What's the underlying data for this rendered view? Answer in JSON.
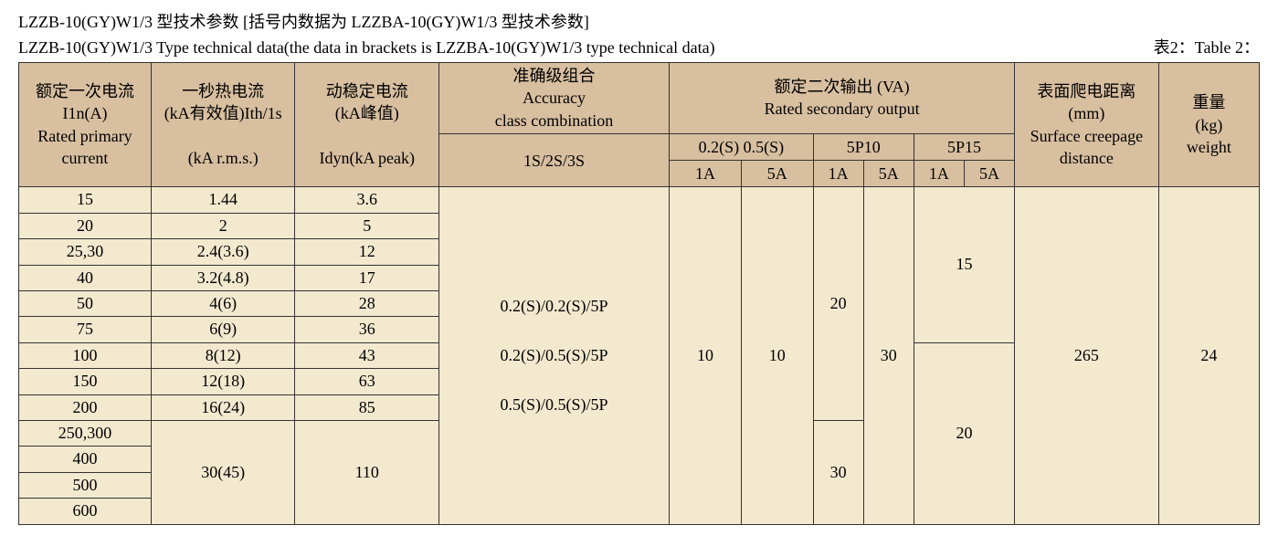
{
  "title_cn": "LZZB-10(GY)W1/3 型技术参数 [括号内数据为 LZZBA-10(GY)W1/3 型技术参数]",
  "title_en": "LZZB-10(GY)W1/3 Type technical data(the data in brackets is LZZBA-10(GY)W1/3 type technical data)",
  "table_label": "表2：Table 2：",
  "headers": {
    "primary_current_cn": "额定一次电流",
    "primary_current_sym": "I1n(A)",
    "primary_current_en": "Rated primary current",
    "thermal_cn": "一秒热电流",
    "thermal_sym": "(kA有效值)Ith/1s",
    "thermal_unit": "(kA r.m.s.)",
    "dyn_cn": "动稳定电流",
    "dyn_sym": "(kA峰值)",
    "dyn_unit": "Idyn(kA peak)",
    "accuracy_cn": "准确级组合",
    "accuracy_en1": "Accuracy",
    "accuracy_en2": "class combination",
    "accuracy_sub": "1S/2S/3S",
    "output_cn": "额定二次输出 (VA)",
    "output_en": "Rated secondary output",
    "out_02_05": "0.2(S)  0.5(S)",
    "out_5p10": "5P10",
    "out_5p15": "5P15",
    "out_1a": "1A",
    "out_5a": "5A",
    "creepage_cn": "表面爬电距离",
    "creepage_mm": "(mm)",
    "creepage_en1": "Surface creepage",
    "creepage_en2": "distance",
    "weight_cn": "重量",
    "weight_kg": "(kg)",
    "weight_en": "weight"
  },
  "rows": {
    "r1_primary": "15",
    "r1_thermal": "1.44",
    "r1_dyn": "3.6",
    "r2_primary": "20",
    "r2_thermal": "2",
    "r2_dyn": "5",
    "r3_primary": "25,30",
    "r3_thermal": "2.4(3.6)",
    "r3_dyn": "12",
    "r4_primary": "40",
    "r4_thermal": "3.2(4.8)",
    "r4_dyn": "17",
    "r5_primary": "50",
    "r5_thermal": "4(6)",
    "r5_dyn": "28",
    "r6_primary": "75",
    "r6_thermal": "6(9)",
    "r6_dyn": "36",
    "r7_primary": "100",
    "r7_thermal": "8(12)",
    "r7_dyn": "43",
    "r8_primary": "150",
    "r8_thermal": "12(18)",
    "r8_dyn": "63",
    "r9_primary": "200",
    "r9_thermal": "16(24)",
    "r9_dyn": "85",
    "r10_primary": "250,300",
    "r11_primary": "400",
    "r12_primary": "500",
    "r13_primary": "600",
    "thermal_last": "30(45)",
    "dyn_last": "110"
  },
  "merged": {
    "accuracy_l1": "0.2(S)/0.2(S)/5P",
    "accuracy_l2": "0.2(S)/0.5(S)/5P",
    "accuracy_l3": "0.5(S)/0.5(S)/5P",
    "out_1a_val": "10",
    "out_5a_val": "10",
    "p10_1a_top": "20",
    "p10_1a_bot": "30",
    "p10_5a": "30",
    "p15_top": "15",
    "p15_bot": "20",
    "creepage": "265",
    "weight": "24"
  },
  "style": {
    "header_bg": "#d8bfa0",
    "body_bg": "#f3e9cf",
    "border_color": "#333333",
    "text_color": "#000000",
    "font_family": "SimSun, Times New Roman, serif",
    "font_size_pt": 18
  }
}
